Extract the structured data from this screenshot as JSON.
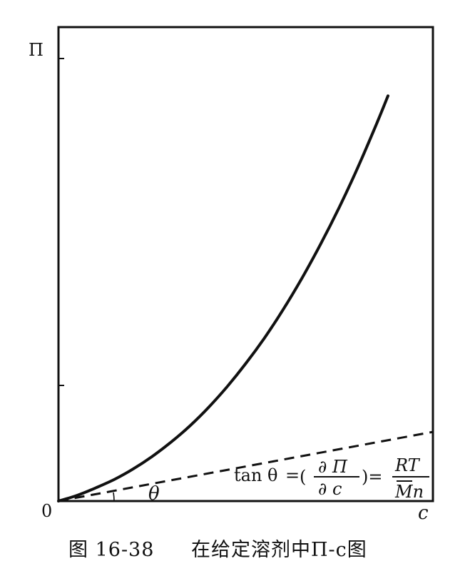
{
  "chart_data": {
    "type": "line",
    "title": "",
    "xlabel": "c",
    "ylabel": "Π",
    "origin_label": "0",
    "xlim": [
      0,
      1
    ],
    "ylim": [
      0,
      1
    ],
    "grid": false,
    "legend": "none",
    "series": [
      {
        "style": "solid",
        "x": [
          0,
          0.05,
          0.1,
          0.15,
          0.2,
          0.25,
          0.3,
          0.35,
          0.4,
          0.45,
          0.5,
          0.55,
          0.6,
          0.65,
          0.7,
          0.75,
          0.8,
          0.85,
          0.88
        ],
        "y": [
          0,
          0.012,
          0.028,
          0.046,
          0.068,
          0.094,
          0.124,
          0.158,
          0.197,
          0.241,
          0.29,
          0.344,
          0.404,
          0.47,
          0.542,
          0.62,
          0.705,
          0.797,
          0.855
        ]
      },
      {
        "style": "dashed",
        "x": [
          0,
          1
        ],
        "y": [
          0,
          0.146
        ]
      }
    ],
    "annotations": {
      "angle_symbol": "θ",
      "formula": {
        "lhs": "tan θ",
        "equals": "=",
        "open_paren": "(",
        "numerator": "∂ Π",
        "denominator": "∂ c",
        "close_paren_equals": ")=",
        "rhs_numerator": "RT",
        "rhs_denominator": "Mn"
      }
    }
  },
  "caption": {
    "figure_number": "图 16-38",
    "text": "在给定溶剂中Π-c图"
  }
}
